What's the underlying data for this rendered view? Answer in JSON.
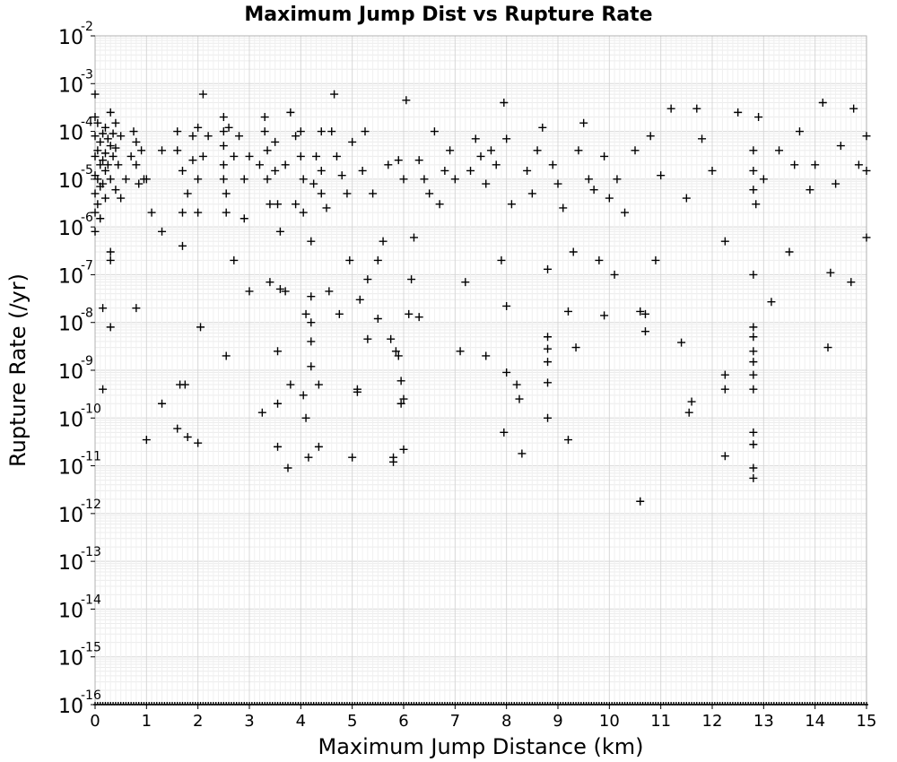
{
  "chart_data": {
    "type": "scatter",
    "title": "Maximum Jump Dist vs Rupture Rate",
    "xlabel": "Maximum Jump Distance (km)",
    "ylabel": "Rupture Rate (/yr)",
    "xlim": [
      0,
      15
    ],
    "ylim": [
      1e-16,
      0.01
    ],
    "yscale": "log",
    "grid": true,
    "legend": "none",
    "marker": "plus",
    "marker_color": "#000000",
    "x_ticks": [
      "0",
      "1",
      "2",
      "3",
      "4",
      "5",
      "6",
      "7",
      "8",
      "9",
      "10",
      "11",
      "12",
      "13",
      "14",
      "15"
    ],
    "y_ticks": [
      {
        "base": "10",
        "exp": "-2"
      },
      {
        "base": "10",
        "exp": "-3"
      },
      {
        "base": "10",
        "exp": "-4"
      },
      {
        "base": "10",
        "exp": "-5"
      },
      {
        "base": "10",
        "exp": "-6"
      },
      {
        "base": "10",
        "exp": "-7"
      },
      {
        "base": "10",
        "exp": "-8"
      },
      {
        "base": "10",
        "exp": "-9"
      },
      {
        "base": "10",
        "exp": "-10"
      },
      {
        "base": "10",
        "exp": "-11"
      },
      {
        "base": "10",
        "exp": "-12"
      },
      {
        "base": "10",
        "exp": "-13"
      },
      {
        "base": "10",
        "exp": "-14"
      },
      {
        "base": "10",
        "exp": "-15"
      },
      {
        "base": "10",
        "exp": "-16"
      }
    ],
    "points": [
      [
        0.0,
        0.0006
      ],
      [
        0.0,
        0.0002
      ],
      [
        0.0,
        8e-05
      ],
      [
        0.0,
        3e-05
      ],
      [
        0.0,
        1.2e-05
      ],
      [
        0.0,
        5e-06
      ],
      [
        0.0,
        2e-06
      ],
      [
        0.0,
        8e-07
      ],
      [
        0.05,
        0.00015
      ],
      [
        0.05,
        4e-05
      ],
      [
        0.05,
        1e-05
      ],
      [
        0.05,
        3e-06
      ],
      [
        0.1,
        6e-05
      ],
      [
        0.1,
        2e-05
      ],
      [
        0.1,
        7e-06
      ],
      [
        0.1,
        1.5e-06
      ],
      [
        0.15,
        9e-05
      ],
      [
        0.15,
        2.5e-05
      ],
      [
        0.15,
        8e-06
      ],
      [
        0.2,
        0.00012
      ],
      [
        0.2,
        3.5e-05
      ],
      [
        0.2,
        1.5e-05
      ],
      [
        0.2,
        4e-06
      ],
      [
        0.25,
        7e-05
      ],
      [
        0.25,
        2e-05
      ],
      [
        0.3,
        0.00025
      ],
      [
        0.3,
        5e-05
      ],
      [
        0.3,
        1e-05
      ],
      [
        0.3,
        3e-07
      ],
      [
        0.3,
        2e-07
      ],
      [
        0.35,
        9e-05
      ],
      [
        0.35,
        3e-05
      ],
      [
        0.4,
        0.00015
      ],
      [
        0.4,
        4.5e-05
      ],
      [
        0.4,
        6e-06
      ],
      [
        0.45,
        2e-05
      ],
      [
        0.5,
        8e-05
      ],
      [
        0.5,
        4e-06
      ],
      [
        0.15,
        2e-08
      ],
      [
        0.3,
        8e-09
      ],
      [
        0.15,
        4e-10
      ],
      [
        0.6,
        1e-05
      ],
      [
        0.7,
        3e-05
      ],
      [
        0.75,
        0.0001
      ],
      [
        0.8,
        6e-05
      ],
      [
        0.8,
        2e-05
      ],
      [
        0.85,
        8e-06
      ],
      [
        0.9,
        4e-05
      ],
      [
        0.95,
        1e-05
      ],
      [
        1.0,
        1e-05
      ],
      [
        1.1,
        2e-06
      ],
      [
        0.8,
        2e-08
      ],
      [
        1.0,
        3.5e-11
      ],
      [
        1.3,
        2e-10
      ],
      [
        1.3,
        4e-05
      ],
      [
        1.3,
        8e-07
      ],
      [
        1.6,
        0.0001
      ],
      [
        1.6,
        4e-05
      ],
      [
        1.7,
        1.5e-05
      ],
      [
        1.7,
        2e-06
      ],
      [
        1.7,
        4e-07
      ],
      [
        1.8,
        5e-06
      ],
      [
        1.9,
        2.5e-05
      ],
      [
        1.9,
        8e-05
      ],
      [
        1.65,
        5e-10
      ],
      [
        1.75,
        5e-10
      ],
      [
        1.6,
        6e-11
      ],
      [
        1.8,
        4e-11
      ],
      [
        2.0,
        3e-11
      ],
      [
        2.05,
        8e-09
      ],
      [
        2.1,
        0.0006
      ],
      [
        2.0,
        0.00012
      ],
      [
        2.1,
        3e-05
      ],
      [
        2.2,
        8e-05
      ],
      [
        2.0,
        1e-05
      ],
      [
        2.0,
        2e-06
      ],
      [
        2.5,
        0.0002
      ],
      [
        2.5,
        0.0001
      ],
      [
        2.5,
        5e-05
      ],
      [
        2.5,
        2e-05
      ],
      [
        2.5,
        1e-05
      ],
      [
        2.55,
        5e-06
      ],
      [
        2.55,
        2e-06
      ],
      [
        2.55,
        2e-09
      ],
      [
        2.6,
        0.00012
      ],
      [
        2.7,
        3e-05
      ],
      [
        2.7,
        2e-07
      ],
      [
        2.8,
        8e-05
      ],
      [
        2.9,
        1e-05
      ],
      [
        2.9,
        1.5e-06
      ],
      [
        3.0,
        4.5e-08
      ],
      [
        3.0,
        3e-05
      ],
      [
        3.2,
        2e-05
      ],
      [
        3.25,
        1.3e-10
      ],
      [
        3.3,
        0.0002
      ],
      [
        3.3,
        0.0001
      ],
      [
        3.35,
        4e-05
      ],
      [
        3.35,
        1e-05
      ],
      [
        3.4,
        3e-06
      ],
      [
        3.4,
        7e-08
      ],
      [
        3.5,
        6e-05
      ],
      [
        3.5,
        1.5e-05
      ],
      [
        3.55,
        3e-06
      ],
      [
        3.6,
        8e-07
      ],
      [
        3.6,
        5e-08
      ],
      [
        3.55,
        2.5e-09
      ],
      [
        3.55,
        2e-10
      ],
      [
        3.55,
        2.5e-11
      ],
      [
        3.7,
        2e-05
      ],
      [
        3.7,
        4.5e-08
      ],
      [
        3.75,
        9e-12
      ],
      [
        3.8,
        5e-10
      ],
      [
        3.8,
        0.00025
      ],
      [
        3.9,
        3e-06
      ],
      [
        3.9,
        8e-05
      ],
      [
        4.0,
        0.0001
      ],
      [
        4.0,
        3e-05
      ],
      [
        4.05,
        1e-05
      ],
      [
        4.05,
        2e-06
      ],
      [
        4.05,
        3e-10
      ],
      [
        4.1,
        1.5e-08
      ],
      [
        4.1,
        1e-10
      ],
      [
        4.15,
        1.5e-11
      ],
      [
        4.2,
        5e-07
      ],
      [
        4.2,
        3.5e-08
      ],
      [
        4.2,
        1e-08
      ],
      [
        4.2,
        4e-09
      ],
      [
        4.2,
        1.2e-09
      ],
      [
        4.25,
        8e-06
      ],
      [
        4.3,
        3e-05
      ],
      [
        4.35,
        5e-10
      ],
      [
        4.35,
        2.5e-11
      ],
      [
        4.4,
        0.0001
      ],
      [
        4.4,
        1.5e-05
      ],
      [
        4.4,
        5e-06
      ],
      [
        4.5,
        2.5e-06
      ],
      [
        4.55,
        4.5e-08
      ],
      [
        4.6,
        0.0001
      ],
      [
        4.65,
        0.0006
      ],
      [
        4.7,
        3e-05
      ],
      [
        4.75,
        1.5e-08
      ],
      [
        4.8,
        1.2e-05
      ],
      [
        4.9,
        5e-06
      ],
      [
        4.95,
        2e-07
      ],
      [
        5.0,
        1.5e-11
      ],
      [
        5.1,
        3.5e-10
      ],
      [
        5.1,
        4e-10
      ],
      [
        5.15,
        3e-08
      ],
      [
        5.0,
        6e-05
      ],
      [
        5.2,
        1.5e-05
      ],
      [
        5.25,
        0.0001
      ],
      [
        5.3,
        4.5e-09
      ],
      [
        5.3,
        8e-08
      ],
      [
        5.4,
        5e-06
      ],
      [
        5.5,
        1.2e-08
      ],
      [
        5.5,
        2e-07
      ],
      [
        5.6,
        5e-07
      ],
      [
        5.7,
        2e-05
      ],
      [
        5.75,
        4.5e-09
      ],
      [
        5.8,
        1.5e-11
      ],
      [
        5.8,
        1.2e-11
      ],
      [
        5.85,
        2.5e-09
      ],
      [
        5.9,
        2e-09
      ],
      [
        5.9,
        2.5e-05
      ],
      [
        5.95,
        6e-10
      ],
      [
        5.95,
        2e-10
      ],
      [
        6.0,
        1e-05
      ],
      [
        6.0,
        2.2e-11
      ],
      [
        6.0,
        2.5e-10
      ],
      [
        6.05,
        0.00045
      ],
      [
        6.1,
        1.5e-08
      ],
      [
        6.15,
        8e-08
      ],
      [
        6.2,
        6e-07
      ],
      [
        6.3,
        1.3e-08
      ],
      [
        6.3,
        2.5e-05
      ],
      [
        6.4,
        1e-05
      ],
      [
        6.5,
        5e-06
      ],
      [
        6.6,
        0.0001
      ],
      [
        6.7,
        3e-06
      ],
      [
        6.8,
        1.5e-05
      ],
      [
        6.9,
        4e-05
      ],
      [
        7.0,
        1e-05
      ],
      [
        7.1,
        2.5e-09
      ],
      [
        7.2,
        7e-08
      ],
      [
        7.3,
        1.5e-05
      ],
      [
        7.4,
        7e-05
      ],
      [
        7.5,
        3e-05
      ],
      [
        7.6,
        2e-09
      ],
      [
        7.6,
        8e-06
      ],
      [
        7.7,
        4e-05
      ],
      [
        7.8,
        2e-05
      ],
      [
        7.9,
        2e-07
      ],
      [
        7.95,
        0.0004
      ],
      [
        7.95,
        5e-11
      ],
      [
        8.0,
        2.2e-08
      ],
      [
        8.0,
        9e-10
      ],
      [
        8.0,
        7e-05
      ],
      [
        8.1,
        3e-06
      ],
      [
        8.2,
        5e-10
      ],
      [
        8.25,
        2.5e-10
      ],
      [
        8.3,
        1.8e-11
      ],
      [
        8.4,
        1.5e-05
      ],
      [
        8.5,
        5e-06
      ],
      [
        8.6,
        4e-05
      ],
      [
        8.7,
        0.00012
      ],
      [
        8.8,
        1.3e-07
      ],
      [
        8.8,
        5e-09
      ],
      [
        8.8,
        2.8e-09
      ],
      [
        8.8,
        1.5e-09
      ],
      [
        8.8,
        5.5e-10
      ],
      [
        8.8,
        1e-10
      ],
      [
        8.9,
        2e-05
      ],
      [
        9.0,
        8e-06
      ],
      [
        9.1,
        2.5e-06
      ],
      [
        9.2,
        1.7e-08
      ],
      [
        9.2,
        3.5e-11
      ],
      [
        9.3,
        3e-07
      ],
      [
        9.35,
        3e-09
      ],
      [
        9.4,
        4e-05
      ],
      [
        9.5,
        0.00015
      ],
      [
        9.6,
        1e-05
      ],
      [
        9.7,
        6e-06
      ],
      [
        9.8,
        2e-07
      ],
      [
        9.9,
        1.4e-08
      ],
      [
        9.9,
        3e-05
      ],
      [
        10.0,
        4e-06
      ],
      [
        10.1,
        1e-07
      ],
      [
        10.15,
        1e-05
      ],
      [
        10.3,
        2e-06
      ],
      [
        10.5,
        4e-05
      ],
      [
        10.6,
        1.7e-08
      ],
      [
        10.6,
        1.8e-12
      ],
      [
        10.7,
        1.5e-08
      ],
      [
        10.7,
        6.5e-09
      ],
      [
        10.8,
        8e-05
      ],
      [
        10.9,
        2e-07
      ],
      [
        11.0,
        1.2e-05
      ],
      [
        11.2,
        0.0003
      ],
      [
        11.4,
        3.8e-09
      ],
      [
        11.5,
        4e-06
      ],
      [
        11.55,
        1.3e-10
      ],
      [
        11.6,
        2.2e-10
      ],
      [
        11.7,
        0.0003
      ],
      [
        11.8,
        7e-05
      ],
      [
        12.0,
        1.5e-05
      ],
      [
        12.25,
        5e-07
      ],
      [
        12.25,
        8e-10
      ],
      [
        12.25,
        4e-10
      ],
      [
        12.25,
        1.6e-11
      ],
      [
        12.5,
        0.00025
      ],
      [
        12.8,
        6e-06
      ],
      [
        12.8,
        1.5e-05
      ],
      [
        12.8,
        4e-05
      ],
      [
        12.8,
        1e-07
      ],
      [
        12.8,
        8e-09
      ],
      [
        12.8,
        5e-09
      ],
      [
        12.8,
        2.5e-09
      ],
      [
        12.8,
        1.5e-09
      ],
      [
        12.8,
        8e-10
      ],
      [
        12.8,
        4e-10
      ],
      [
        12.8,
        5e-11
      ],
      [
        12.8,
        2.8e-11
      ],
      [
        12.8,
        9e-12
      ],
      [
        12.8,
        5.5e-12
      ],
      [
        12.85,
        3e-06
      ],
      [
        12.9,
        0.0002
      ],
      [
        13.0,
        1e-05
      ],
      [
        13.15,
        2.7e-08
      ],
      [
        13.3,
        4e-05
      ],
      [
        13.5,
        3e-07
      ],
      [
        13.6,
        2e-05
      ],
      [
        13.7,
        0.0001
      ],
      [
        13.9,
        6e-06
      ],
      [
        14.0,
        2e-05
      ],
      [
        14.15,
        0.0004
      ],
      [
        14.25,
        3e-09
      ],
      [
        14.3,
        1.1e-07
      ],
      [
        14.4,
        8e-06
      ],
      [
        14.5,
        5e-05
      ],
      [
        14.7,
        7e-08
      ],
      [
        14.75,
        0.0003
      ],
      [
        14.85,
        2e-05
      ],
      [
        15.0,
        6e-07
      ],
      [
        15.0,
        8e-05
      ],
      [
        15.0,
        1.5e-05
      ]
    ],
    "floor_points_value": 1e-16
  }
}
